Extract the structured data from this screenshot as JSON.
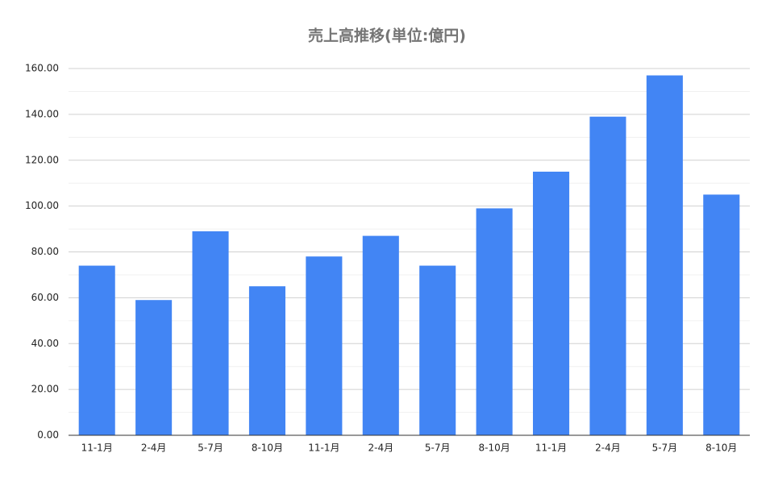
{
  "chart_data": {
    "type": "bar",
    "title": "売上高推移(単位:億円)",
    "categories": [
      "11-1月",
      "2-4月",
      "5-7月",
      "8-10月",
      "11-1月",
      "2-4月",
      "5-7月",
      "8-10月",
      "11-1月",
      "2-4月",
      "5-7月",
      "8-10月"
    ],
    "values": [
      74,
      59,
      89,
      65,
      78,
      87,
      74,
      99,
      115,
      139,
      157,
      105
    ],
    "color": "#4285f4",
    "ylim": [
      0,
      160
    ],
    "yticks": [
      {
        "value": 0,
        "label": "0.00"
      },
      {
        "value": 20,
        "label": "20.00"
      },
      {
        "value": 40,
        "label": "40.00"
      },
      {
        "value": 60,
        "label": "60.00"
      },
      {
        "value": 80,
        "label": "80.00"
      },
      {
        "value": 100,
        "label": "100.00"
      },
      {
        "value": 120,
        "label": "120.00"
      },
      {
        "value": 140,
        "label": "140.00"
      },
      {
        "value": 160,
        "label": "160.00"
      }
    ],
    "minor_yticks": [
      10,
      30,
      50,
      70,
      90,
      110,
      130,
      150
    ],
    "grid": true
  }
}
